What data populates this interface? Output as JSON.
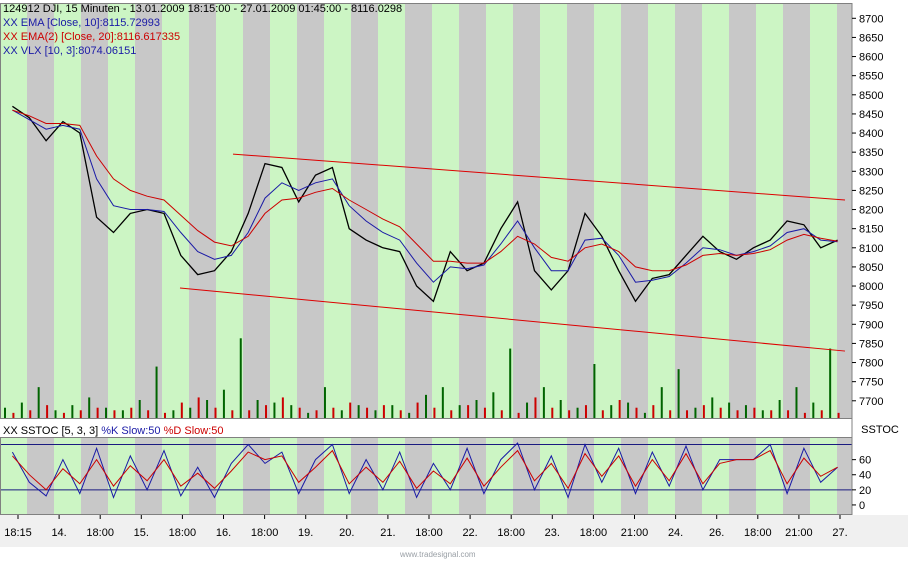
{
  "header": {
    "title": "124912  DJI, 15 Minuten - 13.01.2009 18:15:00 - 27.01.2009 01:45:00 - 8116.0298",
    "ema10": "XX EMA [Close, 10]:8115.72993",
    "ema20": "XX EMA(2) [Close, 20]:8116.617335",
    "vlx": "XX VLX [10, 3]:8074.06151"
  },
  "stoch_legend": {
    "prefix": "XX SSTOC [5, 3, 3]",
    "k": "%K Slow:50",
    "d": "%D Slow:50"
  },
  "panel_tag": "SSTOC",
  "watermark": "www.tradesignal.com",
  "colors": {
    "green_band": "#ccf5c4",
    "gray_band": "#c8c8c8",
    "ema10": "#1a1aa6",
    "ema20": "#cc0000",
    "volume_up": "#006400",
    "volume_down": "#cc0000",
    "trend": "#dd0000"
  },
  "chart_data": [
    {
      "type": "line",
      "y_ticks": [
        7700,
        7750,
        7800,
        7850,
        7900,
        7950,
        8000,
        8050,
        8100,
        8150,
        8200,
        8250,
        8300,
        8350,
        8400,
        8450,
        8500,
        8550,
        8600,
        8650,
        8700
      ],
      "ylim": [
        7655,
        8740
      ],
      "x_ticks": [
        "18:15",
        "14.",
        "18:00",
        "15.",
        "18:00",
        "16.",
        "18:00",
        "19.",
        "20.",
        "21.",
        "18:00",
        "22.",
        "18:00",
        "23.",
        "18:00",
        "21:00",
        "24.",
        "26.",
        "18:00",
        "21:00",
        "27."
      ],
      "series": [
        {
          "values": [
            8470,
            8440,
            8380,
            8430,
            8400,
            8180,
            8140,
            8190,
            8200,
            8190,
            8080,
            8030,
            8040,
            8090,
            8190,
            8320,
            8310,
            8220,
            8290,
            8310,
            8150,
            8120,
            8100,
            8090,
            8000,
            7960,
            8090,
            8040,
            8060,
            8150,
            8220,
            8040,
            7990,
            8040,
            8190,
            8130,
            8040,
            7960,
            8020,
            8030,
            8080,
            8130,
            8090,
            8070,
            8100,
            8120,
            8170,
            8160,
            8100,
            8120
          ]
        },
        {
          "values": [
            8460,
            8435,
            8410,
            8420,
            8410,
            8280,
            8210,
            8200,
            8200,
            8195,
            8140,
            8090,
            8070,
            8080,
            8140,
            8230,
            8270,
            8250,
            8270,
            8280,
            8210,
            8170,
            8140,
            8120,
            8060,
            8010,
            8050,
            8045,
            8055,
            8110,
            8170,
            8100,
            8040,
            8040,
            8120,
            8125,
            8080,
            8010,
            8015,
            8025,
            8060,
            8100,
            8095,
            8080,
            8090,
            8105,
            8140,
            8150,
            8120,
            8116
          ]
        },
        {
          "values": [
            8460,
            8445,
            8425,
            8425,
            8420,
            8340,
            8280,
            8250,
            8235,
            8225,
            8185,
            8145,
            8115,
            8105,
            8130,
            8190,
            8225,
            8230,
            8245,
            8255,
            8225,
            8200,
            8175,
            8155,
            8110,
            8065,
            8065,
            8060,
            8060,
            8090,
            8130,
            8110,
            8075,
            8065,
            8100,
            8110,
            8090,
            8050,
            8040,
            8040,
            8055,
            8080,
            8085,
            8080,
            8085,
            8095,
            8120,
            8135,
            8125,
            8117
          ]
        }
      ]
    },
    {
      "type": "bar",
      "series": [
        {
          "name": "up",
          "values": [
            4,
            6,
            12,
            3,
            5,
            8,
            4,
            3,
            7,
            20,
            3,
            4,
            7,
            11,
            31,
            7,
            6,
            5,
            2,
            12,
            3,
            5,
            3,
            5,
            2,
            9,
            12,
            5,
            7,
            10,
            27,
            6,
            12,
            7,
            4,
            21,
            5,
            6,
            2,
            12,
            19,
            4,
            8,
            6,
            5,
            3,
            7,
            12,
            6,
            27
          ]
        },
        {
          "name": "down",
          "values": [
            2,
            3,
            5,
            2,
            3,
            4,
            3,
            4,
            3,
            2,
            6,
            8,
            4,
            3,
            3,
            5,
            8,
            4,
            3,
            4,
            6,
            4,
            5,
            3,
            6,
            4,
            3,
            5,
            4,
            3,
            2,
            8,
            4,
            3,
            5,
            3,
            7,
            4,
            5,
            3,
            3,
            5,
            4,
            3,
            4,
            3,
            3,
            2,
            3,
            2
          ]
        }
      ]
    },
    {
      "type": "line",
      "y_ticks": [
        0,
        20,
        40,
        60
      ],
      "ylim": [
        -12,
        90
      ],
      "series": [
        {
          "name": "%K Slow",
          "values": [
            70,
            30,
            12,
            60,
            15,
            75,
            10,
            65,
            20,
            72,
            12,
            50,
            10,
            55,
            80,
            55,
            70,
            15,
            60,
            80,
            15,
            60,
            20,
            70,
            10,
            55,
            20,
            75,
            15,
            60,
            82,
            20,
            65,
            10,
            80,
            30,
            75,
            15,
            70,
            25,
            78,
            20,
            60,
            60,
            60,
            80,
            15,
            75,
            30,
            50
          ]
        },
        {
          "name": "%D Slow",
          "values": [
            65,
            40,
            20,
            48,
            28,
            60,
            25,
            52,
            32,
            60,
            25,
            42,
            22,
            45,
            70,
            60,
            65,
            30,
            50,
            72,
            28,
            50,
            30,
            58,
            22,
            45,
            28,
            62,
            25,
            50,
            72,
            32,
            55,
            22,
            68,
            38,
            65,
            25,
            60,
            32,
            68,
            28,
            55,
            60,
            60,
            72,
            28,
            62,
            38,
            50
          ]
        }
      ]
    }
  ]
}
